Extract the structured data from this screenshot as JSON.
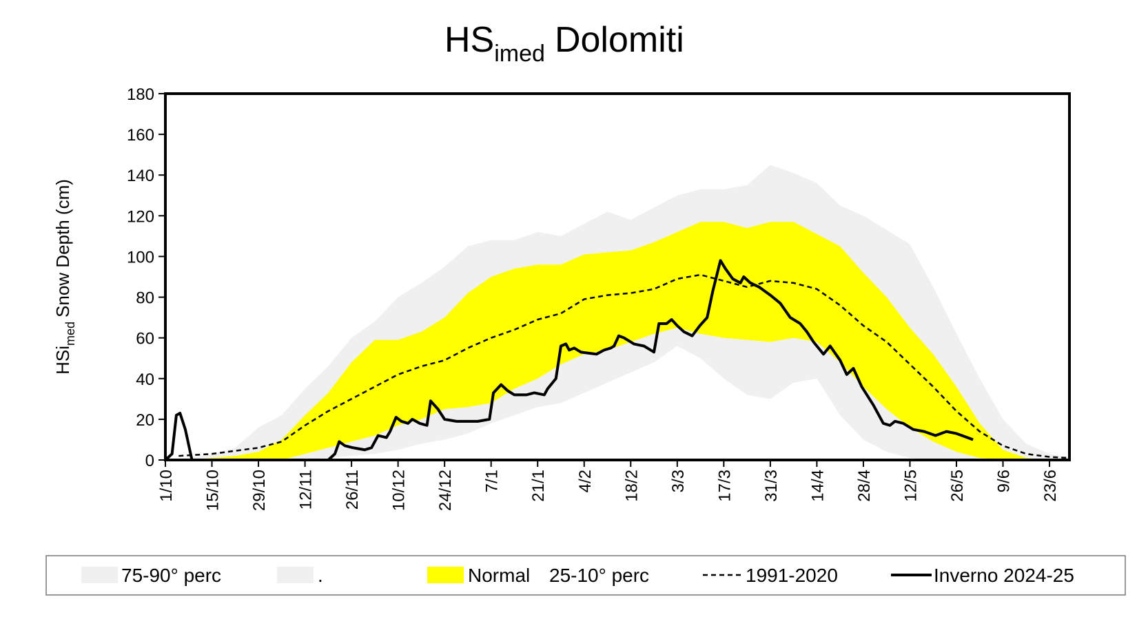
{
  "chart_data": {
    "type": "band-line",
    "title": [
      "HS",
      "imed",
      "Dolomiti"
    ],
    "y_label": [
      "HSi",
      "med",
      "Snow Depth  (cm)"
    ],
    "xlim": [
      0,
      272
    ],
    "ylim": [
      0,
      180
    ],
    "yticks": [
      0,
      20,
      40,
      60,
      80,
      100,
      120,
      140,
      160,
      180
    ],
    "xticks": [
      {
        "value": 0,
        "label": "1/10"
      },
      {
        "value": 14,
        "label": "15/10"
      },
      {
        "value": 28,
        "label": "29/10"
      },
      {
        "value": 42,
        "label": "12/11"
      },
      {
        "value": 56,
        "label": "26/11"
      },
      {
        "value": 70,
        "label": "10/12"
      },
      {
        "value": 84,
        "label": "24/12"
      },
      {
        "value": 98,
        "label": "7/1"
      },
      {
        "value": 112,
        "label": "21/1"
      },
      {
        "value": 126,
        "label": "4/2"
      },
      {
        "value": 140,
        "label": "18/2"
      },
      {
        "value": 154,
        "label": "3/3"
      },
      {
        "value": 168,
        "label": "17/3"
      },
      {
        "value": 182,
        "label": "31/3"
      },
      {
        "value": 196,
        "label": "14/4"
      },
      {
        "value": 210,
        "label": "28/4"
      },
      {
        "value": 224,
        "label": "12/5"
      },
      {
        "value": 238,
        "label": "26/5"
      },
      {
        "value": 252,
        "label": "9/6"
      },
      {
        "value": 266,
        "label": "23/6"
      }
    ],
    "legend_note": "25-10° perc",
    "series": [
      {
        "name": "75-90° perc",
        "kind": "band",
        "color": "#f0f0f0",
        "x": [
          0,
          7,
          14,
          21,
          28,
          35,
          42,
          49,
          56,
          63,
          70,
          77,
          84,
          91,
          98,
          105,
          112,
          119,
          126,
          133,
          140,
          147,
          154,
          161,
          168,
          175,
          182,
          189,
          196,
          203,
          210,
          217,
          224,
          231,
          238,
          245,
          252,
          259,
          266,
          272
        ],
        "lower": [
          0,
          0,
          1,
          2,
          4,
          10,
          22,
          33,
          48,
          59,
          59,
          63,
          70,
          82,
          90,
          94,
          96,
          96,
          101,
          102,
          103,
          107,
          112,
          117,
          117,
          114,
          117,
          117,
          111,
          105,
          92,
          80,
          65,
          52,
          36,
          18,
          5,
          1,
          0,
          0
        ],
        "upper": [
          0,
          1,
          3,
          6,
          16,
          22,
          35,
          46,
          60,
          68,
          80,
          87,
          95,
          105,
          108,
          108,
          112,
          110,
          116,
          122,
          118,
          124,
          130,
          133,
          133,
          135,
          145,
          141,
          136,
          125,
          120,
          113,
          106,
          85,
          62,
          40,
          20,
          8,
          3,
          1
        ]
      },
      {
        "name": ".",
        "kind": "band",
        "color": "#f0f0f0",
        "x": [
          0,
          7,
          14,
          21,
          28,
          35,
          42,
          49,
          56,
          63,
          70,
          77,
          84,
          91,
          98,
          105,
          112,
          119,
          126,
          133,
          140,
          147,
          154,
          161,
          168,
          175,
          182,
          189,
          196,
          203,
          210,
          217,
          224,
          231,
          238,
          245,
          252,
          259,
          266,
          272
        ],
        "lower": [
          0,
          0,
          0,
          0,
          0,
          0,
          0,
          1,
          2,
          3,
          5,
          8,
          10,
          13,
          18,
          22,
          26,
          28,
          33,
          38,
          43,
          48,
          56,
          50,
          40,
          32,
          30,
          38,
          40,
          22,
          10,
          4,
          1,
          0,
          0,
          0,
          0,
          0,
          0,
          0
        ],
        "upper": [
          0,
          0,
          0,
          0,
          0,
          0,
          3,
          6,
          9,
          12,
          17,
          20,
          25,
          26,
          28,
          35,
          40,
          47,
          52,
          54,
          58,
          62,
          65,
          62,
          60,
          59,
          58,
          60,
          58,
          48,
          36,
          25,
          16,
          9,
          4,
          1,
          0,
          0,
          0,
          0
        ]
      },
      {
        "name": "Normal",
        "kind": "band",
        "color": "#ffff00",
        "x": [
          0,
          7,
          14,
          21,
          28,
          35,
          42,
          49,
          56,
          63,
          70,
          77,
          84,
          91,
          98,
          105,
          112,
          119,
          126,
          133,
          140,
          147,
          154,
          161,
          168,
          175,
          182,
          189,
          196,
          203,
          210,
          217,
          224,
          231,
          238,
          245,
          252,
          259,
          266,
          272
        ],
        "lower": [
          0,
          0,
          0,
          0,
          0,
          0,
          3,
          6,
          9,
          12,
          17,
          20,
          25,
          26,
          28,
          35,
          40,
          47,
          52,
          54,
          58,
          62,
          65,
          62,
          60,
          59,
          58,
          60,
          58,
          48,
          36,
          25,
          16,
          9,
          4,
          1,
          0,
          0,
          0,
          0
        ],
        "upper": [
          0,
          0,
          1,
          2,
          4,
          10,
          22,
          33,
          48,
          59,
          59,
          63,
          70,
          82,
          90,
          94,
          96,
          96,
          101,
          102,
          103,
          107,
          112,
          117,
          117,
          114,
          117,
          117,
          111,
          105,
          92,
          80,
          65,
          52,
          36,
          18,
          5,
          1,
          0,
          0
        ]
      },
      {
        "name": "1991-2020",
        "kind": "line",
        "dash": true,
        "color": "#000000",
        "x": [
          4,
          14,
          28,
          35,
          42,
          49,
          56,
          63,
          70,
          77,
          84,
          91,
          98,
          105,
          112,
          119,
          126,
          133,
          140,
          147,
          154,
          161,
          168,
          175,
          182,
          189,
          196,
          203,
          210,
          217,
          224,
          231,
          238,
          245,
          252,
          259,
          266,
          272
        ],
        "values": [
          2,
          3,
          6,
          9,
          17,
          24,
          30,
          36,
          42,
          46,
          49,
          55,
          60,
          64,
          69,
          72,
          79,
          81,
          82,
          84,
          89,
          91,
          88,
          85,
          88,
          87,
          84,
          76,
          66,
          58,
          47,
          36,
          24,
          14,
          7,
          3,
          1.5,
          1
        ]
      },
      {
        "name": "Inverno 2024-25",
        "kind": "line",
        "dash": false,
        "color": "#000000",
        "x": [
          0,
          2,
          3.3,
          4.4,
          6,
          8,
          44,
          49,
          51,
          52.3,
          54,
          56.5,
          60,
          62,
          64,
          66.5,
          67.6,
          69.4,
          71,
          73,
          74.3,
          76.5,
          78.7,
          79.8,
          82,
          84,
          87.6,
          94,
          97.5,
          98.7,
          101,
          103,
          105,
          108.6,
          111,
          114,
          115,
          117.5,
          119,
          120.5,
          121.5,
          123,
          125,
          129.7,
          132,
          134,
          135,
          136.4,
          138,
          141,
          144,
          147,
          148.5,
          150.8,
          152.3,
          154,
          156,
          158.5,
          160.8,
          163,
          164.7,
          167,
          168.5,
          170.7,
          173,
          174,
          176,
          178.6,
          182,
          185,
          188,
          191,
          193,
          195,
          198,
          200,
          203,
          205,
          207,
          209.5,
          213,
          216,
          218,
          219.5,
          222,
          225,
          228.3,
          231.7,
          235,
          238,
          243
        ],
        "values": [
          0,
          3,
          22,
          23,
          15,
          0,
          0,
          0,
          3,
          9,
          7,
          6,
          5,
          6,
          12,
          11,
          14,
          21,
          19,
          18,
          20,
          18,
          17,
          29,
          25,
          20,
          19,
          19,
          20,
          33,
          37,
          34,
          32,
          32,
          33,
          32,
          35,
          40,
          56,
          57,
          54,
          55,
          53,
          52,
          54,
          55,
          56,
          61,
          60,
          57,
          56,
          53,
          67,
          67,
          69,
          66,
          63,
          61,
          66,
          70,
          83,
          98,
          94,
          89,
          87,
          90,
          87,
          85,
          81,
          77,
          70,
          67,
          63,
          58,
          52,
          56,
          49,
          42,
          45,
          36,
          27,
          18,
          17,
          19,
          18,
          15,
          14,
          12,
          14,
          13,
          10
        ]
      }
    ]
  }
}
